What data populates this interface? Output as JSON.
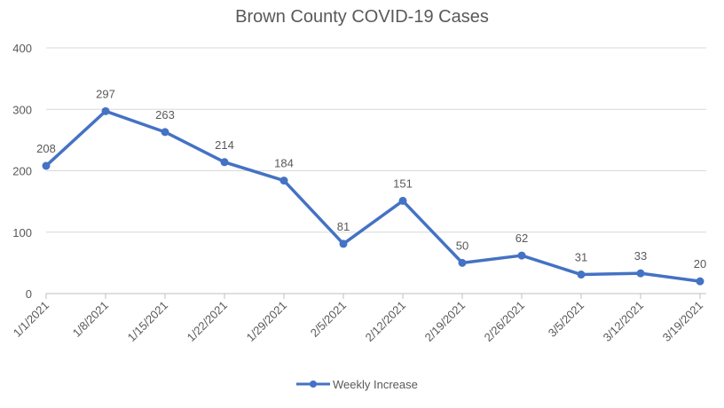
{
  "chart_data": {
    "type": "line",
    "title": "Brown County COVID-19 Cases",
    "xlabel": "",
    "ylabel": "",
    "categories": [
      "1/1/2021",
      "1/8/2021",
      "1/15/2021",
      "1/22/2021",
      "1/29/2021",
      "2/5/2021",
      "2/12/2021",
      "2/19/2021",
      "2/26/2021",
      "3/5/2021",
      "3/12/2021",
      "3/19/2021"
    ],
    "series": [
      {
        "name": "Weekly Increase",
        "values": [
          208,
          297,
          263,
          214,
          184,
          81,
          151,
          50,
          62,
          31,
          33,
          20
        ],
        "color": "#4472C4"
      }
    ],
    "ylim": [
      0,
      400
    ],
    "yticks": [
      0,
      100,
      200,
      300,
      400
    ],
    "grid": true,
    "legend": "bottom-center",
    "data_labels": true
  }
}
